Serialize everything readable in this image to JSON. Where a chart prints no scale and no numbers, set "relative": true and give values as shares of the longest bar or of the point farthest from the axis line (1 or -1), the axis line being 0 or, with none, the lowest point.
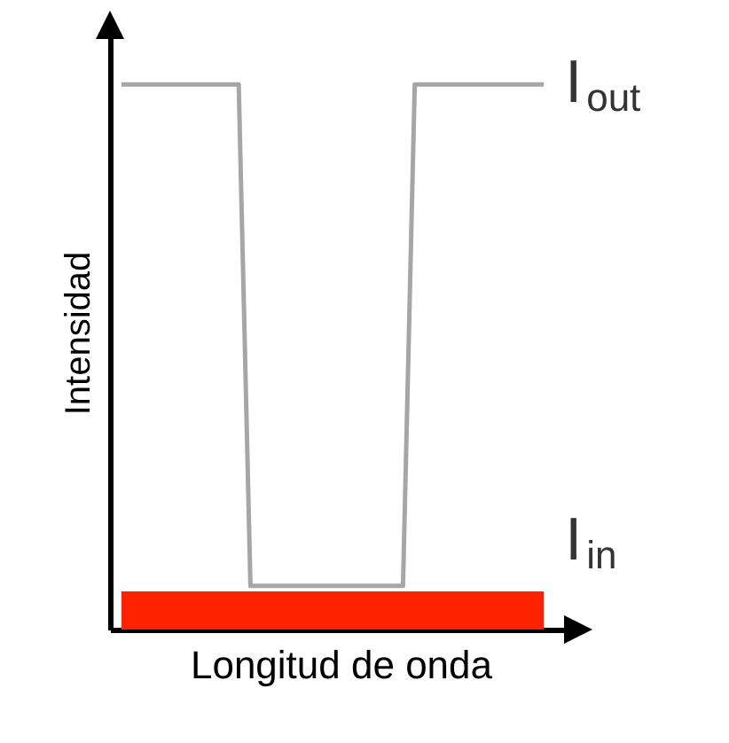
{
  "chart_data": {
    "type": "line",
    "relative": true,
    "xlabel": "Longitud de onda",
    "ylabel": "Intensidad",
    "categories": [
      null,
      null,
      null,
      null,
      null,
      null,
      null,
      null,
      null,
      null,
      null,
      null,
      null,
      null,
      null,
      null,
      null,
      null,
      null,
      null,
      null,
      null,
      null,
      null,
      null,
      null,
      null,
      null,
      null,
      null,
      null,
      null,
      null,
      null,
      null,
      null,
      null
    ],
    "series": [
      {
        "name": "I$_{out}$",
        "color": "#a6a6a6",
        "values": [
          1,
          1,
          1,
          1,
          1,
          1,
          1,
          1,
          1,
          1,
          1,
          0.08,
          0.08,
          0.08,
          0.08,
          0.08,
          0.08,
          0.08,
          0.08,
          0.08,
          0.08,
          0.08,
          0.08,
          0.08,
          0.08,
          1,
          1,
          1,
          1,
          1,
          1,
          1,
          1,
          1,
          1,
          1,
          1
        ]
      },
      {
        "name": "I$_{in}$",
        "type": "area",
        "color": "#ff2200",
        "values": [
          0.07,
          0.07,
          0.07,
          0.07,
          0.07,
          0.07,
          0.07,
          0.07,
          0.07,
          0.07,
          0.07,
          0.07,
          0.07,
          0.07,
          0.07,
          0.07,
          0.07,
          0.07,
          0.07,
          0.07,
          0.07,
          0.07,
          0.07,
          0.07,
          0.07,
          0.07,
          0.07,
          0.07,
          0.07,
          0.07,
          0.07,
          0.07,
          0.07,
          0.07,
          0.07,
          0.07,
          0.07
        ]
      }
    ]
  }
}
